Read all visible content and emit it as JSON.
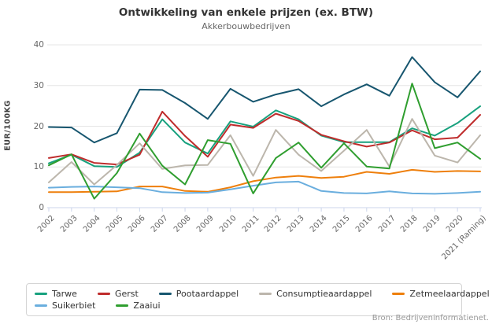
{
  "title": "Ontwikkeling van enkele prijzen (ex. BTW)",
  "subtitle": "Akkerbouwbedrijven",
  "source": "Bron: Bedrijveninformatienet.",
  "y_axis_title": "EUR/100KG",
  "chart_data": {
    "type": "line",
    "title": "Ontwikkeling van enkele prijzen (ex. BTW)",
    "subtitle": "Akkerbouwbedrijven",
    "xlabel": "",
    "ylabel": "EUR/100KG",
    "ylim": [
      0,
      40
    ],
    "y_ticks": [
      0,
      10,
      20,
      30,
      40
    ],
    "grid": true,
    "legend_position": "bottom",
    "categories": [
      "2002",
      "2003",
      "2004",
      "2005",
      "2006",
      "2007",
      "2008",
      "2009",
      "2010",
      "2011",
      "2012",
      "2013",
      "2014",
      "2015",
      "2016",
      "2017",
      "2018",
      "2019",
      "2020",
      "2021 (Raming)"
    ],
    "series": [
      {
        "name": "Tarwe",
        "color": "#18a17e",
        "values": [
          10.9,
          13.0,
          10.2,
          10.0,
          13.5,
          21.7,
          16.0,
          13.3,
          21.2,
          19.9,
          23.9,
          21.7,
          17.7,
          16.1,
          16.1,
          16.1,
          19.5,
          17.7,
          20.8,
          24.9
        ]
      },
      {
        "name": "Gerst",
        "color": "#bf2c2c",
        "values": [
          12.2,
          13.1,
          11.0,
          10.6,
          13.0,
          23.6,
          17.6,
          12.5,
          20.4,
          19.6,
          23.1,
          21.3,
          17.9,
          16.3,
          15.0,
          16.0,
          19.0,
          16.8,
          17.2,
          22.8
        ]
      },
      {
        "name": "Pootaardappel",
        "color": "#17566f",
        "values": [
          19.8,
          19.7,
          16.0,
          18.3,
          29.0,
          28.9,
          25.7,
          21.8,
          29.2,
          26.0,
          27.8,
          29.1,
          24.9,
          27.8,
          30.3,
          27.5,
          37.0,
          30.8,
          27.1,
          33.5
        ]
      },
      {
        "name": "Consumptieaardappel",
        "color": "#bcb6ac",
        "values": [
          6.2,
          11.2,
          5.7,
          10.5,
          15.8,
          9.5,
          10.4,
          10.5,
          17.8,
          7.8,
          19.1,
          13.0,
          9.0,
          14.0,
          19.1,
          10.1,
          21.8,
          12.8,
          11.1,
          17.8
        ]
      },
      {
        "name": "Zetmeelaardappel",
        "color": "#ee7f0c",
        "values": [
          3.8,
          3.8,
          3.9,
          4.0,
          5.2,
          5.2,
          4.1,
          3.9,
          5.0,
          6.5,
          7.4,
          7.8,
          7.3,
          7.6,
          8.8,
          8.3,
          9.3,
          8.8,
          9.0,
          8.9
        ]
      },
      {
        "name": "Suikerbiet",
        "color": "#6aaede",
        "values": [
          4.9,
          5.1,
          5.2,
          5.0,
          4.8,
          3.8,
          3.6,
          3.7,
          4.5,
          5.4,
          6.2,
          6.4,
          4.1,
          3.6,
          3.5,
          4.0,
          3.5,
          3.4,
          3.6,
          3.9
        ]
      },
      {
        "name": "Zaaiui",
        "color": "#2f9e2f",
        "values": [
          10.4,
          13.1,
          2.2,
          8.5,
          18.2,
          10.3,
          5.7,
          16.6,
          15.7,
          3.5,
          12.2,
          16.0,
          9.8,
          15.8,
          10.1,
          9.6,
          30.5,
          14.6,
          16.0,
          12.0
        ]
      }
    ],
    "legend_rows": [
      [
        0,
        1,
        2,
        3,
        4
      ],
      [
        5,
        6
      ]
    ]
  },
  "style": {
    "grid_color": "#e6e6e6",
    "axis_color": "#ccd6eb",
    "background": "#ffffff"
  }
}
